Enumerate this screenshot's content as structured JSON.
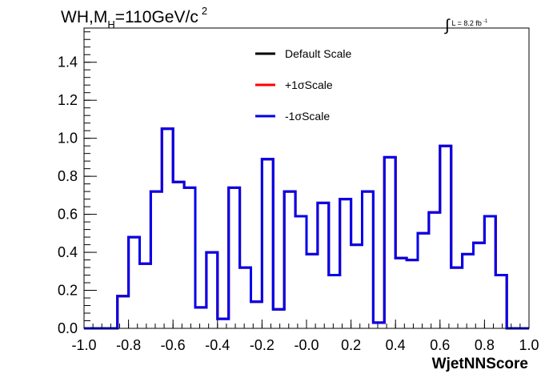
{
  "chart_data": {
    "type": "line",
    "title_parts": {
      "base": "WH,M",
      "sub": "H",
      "main": "=110GeV/c",
      "sup": "2"
    },
    "lumi_parts": {
      "integral": "∫",
      "text": "L = 8.2 fb",
      "sup": "-1"
    },
    "xlabel": "WjetNNScore",
    "ylabel": "",
    "xlim": [
      -1.0,
      1.0
    ],
    "ylim": [
      0,
      1.58
    ],
    "x_ticks": [
      "-1.0",
      "-0.8",
      "-0.6",
      "-0.4",
      "-0.2",
      "-0.0",
      "0.2",
      "0.4",
      "0.6",
      "0.8",
      "1.0"
    ],
    "y_ticks": [
      "0.0",
      "0.2",
      "0.4",
      "0.6",
      "0.8",
      "1.0",
      "1.2",
      "1.4"
    ],
    "grid": false,
    "legend_position": "top-center",
    "bin_edges": [
      -1.0,
      -0.95,
      -0.9,
      -0.85,
      -0.8,
      -0.75,
      -0.7,
      -0.65,
      -0.6,
      -0.55,
      -0.5,
      -0.45,
      -0.4,
      -0.35,
      -0.3,
      -0.25,
      -0.2,
      -0.15,
      -0.1,
      -0.05,
      0.0,
      0.05,
      0.1,
      0.15,
      0.2,
      0.25,
      0.3,
      0.35,
      0.4,
      0.45,
      0.5,
      0.55,
      0.6,
      0.65,
      0.7,
      0.75,
      0.8,
      0.85,
      0.9,
      0.95,
      1.0
    ],
    "series": [
      {
        "name": "Default Scale",
        "color": "#000000",
        "values": [
          0,
          0,
          0,
          0.17,
          0.48,
          0.34,
          0.72,
          1.05,
          0.77,
          0.74,
          0.11,
          0.4,
          0.05,
          0.74,
          0.32,
          0.14,
          0.89,
          0.1,
          0.72,
          0.59,
          0.39,
          0.66,
          0.28,
          0.68,
          0.44,
          0.72,
          0.03,
          0.9,
          0.37,
          0.36,
          0.5,
          0.61,
          0.96,
          0.32,
          0.39,
          0.45,
          0.59,
          0.28,
          0,
          0
        ]
      },
      {
        "name": "+1σScale",
        "color": "#ff0000",
        "values": [
          0,
          0,
          0,
          0.17,
          0.48,
          0.34,
          0.72,
          1.05,
          0.77,
          0.74,
          0.11,
          0.4,
          0.05,
          0.74,
          0.32,
          0.14,
          0.89,
          0.1,
          0.72,
          0.59,
          0.39,
          0.66,
          0.28,
          0.68,
          0.44,
          0.72,
          0.03,
          0.9,
          0.37,
          0.36,
          0.5,
          0.61,
          0.96,
          0.32,
          0.39,
          0.45,
          0.59,
          0.28,
          0,
          0
        ]
      },
      {
        "name": "-1σScale",
        "color": "#0000ee",
        "values": [
          0,
          0,
          0,
          0.17,
          0.48,
          0.34,
          0.72,
          1.05,
          0.77,
          0.74,
          0.11,
          0.4,
          0.05,
          0.74,
          0.32,
          0.14,
          0.89,
          0.1,
          0.72,
          0.59,
          0.39,
          0.66,
          0.28,
          0.68,
          0.44,
          0.72,
          0.03,
          0.9,
          0.37,
          0.36,
          0.5,
          0.61,
          0.96,
          0.32,
          0.39,
          0.45,
          0.59,
          0.28,
          0,
          0
        ]
      }
    ]
  }
}
